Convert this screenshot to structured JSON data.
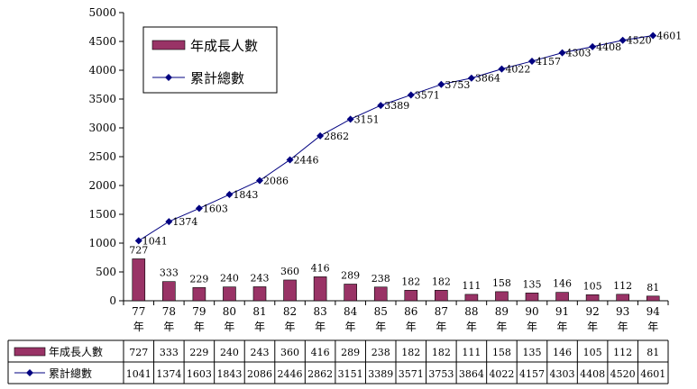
{
  "chart_data": {
    "type": "bar",
    "categories": [
      "77年",
      "78年",
      "79年",
      "80年",
      "81年",
      "82年",
      "83年",
      "84年",
      "85年",
      "86年",
      "87年",
      "88年",
      "89年",
      "90年",
      "91年",
      "92年",
      "93年",
      "94年"
    ],
    "series": [
      {
        "name": "年成長人數",
        "kind": "bar",
        "color": "#993366",
        "values": [
          727,
          333,
          229,
          240,
          243,
          360,
          416,
          289,
          238,
          182,
          182,
          111,
          158,
          135,
          146,
          105,
          112,
          81
        ]
      },
      {
        "name": "累計總數",
        "kind": "line",
        "color": "#000080",
        "values": [
          1041,
          1374,
          1603,
          1843,
          2086,
          2446,
          2862,
          3151,
          3389,
          3571,
          3753,
          3864,
          4022,
          4157,
          4303,
          4408,
          4520,
          4601
        ]
      }
    ],
    "ylim": [
      0,
      5000
    ],
    "yticks": [
      0,
      500,
      1000,
      1500,
      2000,
      2500,
      3000,
      3500,
      4000,
      4500,
      5000
    ],
    "title": "",
    "xlabel": "",
    "ylabel": "",
    "legend": "top-left",
    "grid": false,
    "data_table": true
  }
}
